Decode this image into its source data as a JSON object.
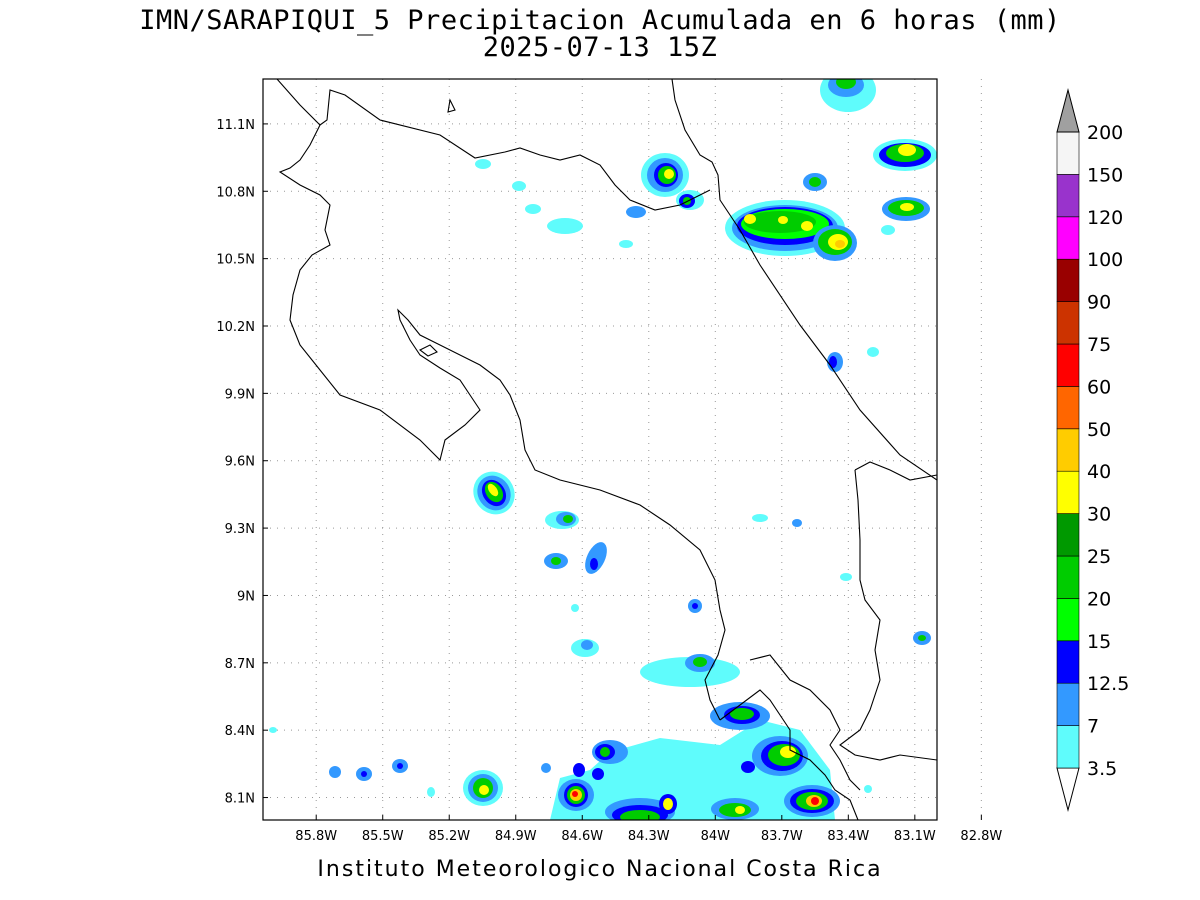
{
  "title": {
    "line1": "IMN/SARAPIQUI_5 Precipitacion Acumulada en 6 horas (mm)",
    "line2": "2025-07-13 15Z"
  },
  "footer": "Instituto Meteorologico Nacional Costa Rica",
  "axes": {
    "x_ticks": [
      {
        "value": -85.8,
        "label": "85.8W"
      },
      {
        "value": -85.5,
        "label": "85.5W"
      },
      {
        "value": -85.2,
        "label": "85.2W"
      },
      {
        "value": -84.9,
        "label": "84.9W"
      },
      {
        "value": -84.6,
        "label": "84.6W"
      },
      {
        "value": -84.3,
        "label": "84.3W"
      },
      {
        "value": -84.0,
        "label": "84W"
      },
      {
        "value": -83.7,
        "label": "83.7W"
      },
      {
        "value": -83.4,
        "label": "83.4W"
      },
      {
        "value": -83.1,
        "label": "83.1W"
      },
      {
        "value": -82.8,
        "label": "82.8W"
      }
    ],
    "y_ticks": [
      {
        "value": 11.1,
        "label": "11.1N"
      },
      {
        "value": 10.8,
        "label": "10.8N"
      },
      {
        "value": 10.5,
        "label": "10.5N"
      },
      {
        "value": 10.2,
        "label": "10.2N"
      },
      {
        "value": 9.9,
        "label": "9.9N"
      },
      {
        "value": 9.6,
        "label": "9.6N"
      },
      {
        "value": 9.3,
        "label": "9.3N"
      },
      {
        "value": 9.0,
        "label": "9N"
      },
      {
        "value": 8.7,
        "label": "8.7N"
      },
      {
        "value": 8.4,
        "label": "8.4N"
      },
      {
        "value": 8.1,
        "label": "8.1N"
      }
    ],
    "lon_range": [
      -86.04,
      -83.0
    ],
    "lat_range": [
      8.0,
      11.3
    ],
    "grid": "dotted"
  },
  "legend": {
    "levels": [
      {
        "label": "3.5",
        "color": "#5ffcfc"
      },
      {
        "label": "7",
        "color": "#3399ff"
      },
      {
        "label": "12.5",
        "color": "#0000ff"
      },
      {
        "label": "15",
        "color": "#00ff00"
      },
      {
        "label": "20",
        "color": "#00cc00"
      },
      {
        "label": "25",
        "color": "#009900"
      },
      {
        "label": "30",
        "color": "#ffff00"
      },
      {
        "label": "40",
        "color": "#ffcc00"
      },
      {
        "label": "50",
        "color": "#ff6600"
      },
      {
        "label": "60",
        "color": "#ff0000"
      },
      {
        "label": "75",
        "color": "#cc3300"
      },
      {
        "label": "90",
        "color": "#990000"
      },
      {
        "label": "100",
        "color": "#ff00ff"
      },
      {
        "label": "120",
        "color": "#9933cc"
      },
      {
        "label": "150",
        "color": "#f5f5f5"
      },
      {
        "label": "200",
        "color": "#a0a0a0"
      }
    ]
  }
}
